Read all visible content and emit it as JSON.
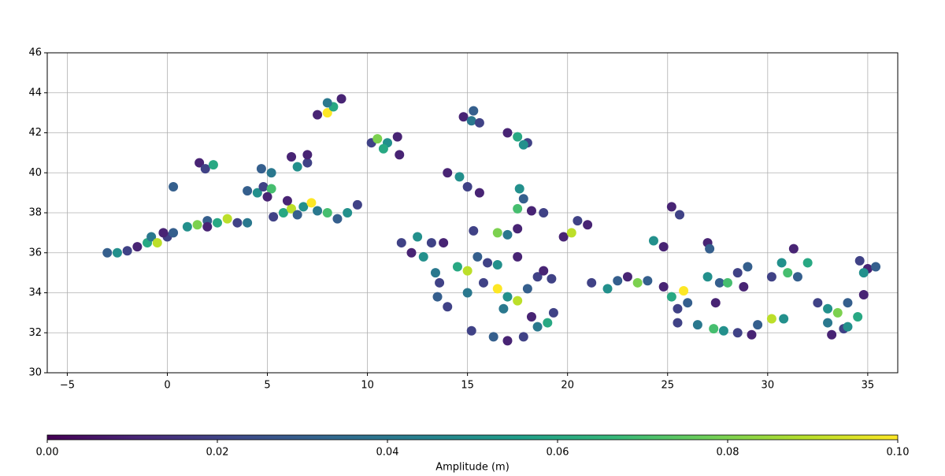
{
  "chart_data": {
    "type": "scatter",
    "x": [
      -3,
      -2.5,
      -2,
      -1.5,
      -1,
      -0.8,
      -0.5,
      0,
      0.3,
      -0.2,
      1,
      1.5,
      2,
      2.5,
      3,
      3.5,
      4,
      2,
      0.3,
      1.6,
      1.9,
      2.3,
      4,
      4.5,
      4.8,
      5.2,
      4.7,
      5.2,
      5,
      5.3,
      5.8,
      6.2,
      6.5,
      6.8,
      7.2,
      7.5,
      8,
      8.5,
      9,
      9.5,
      6,
      6.2,
      6.5,
      7,
      7,
      7.5,
      8,
      8.3,
      8.7,
      8,
      10.2,
      10.5,
      11,
      11.5,
      11.6,
      10.8,
      14.8,
      15.2,
      15.6,
      15.3,
      17,
      17.5,
      18,
      17.8,
      14,
      14.6,
      15,
      15.6,
      17.6,
      17.8,
      17.5,
      18.2,
      18.8,
      15.3,
      16.5,
      17,
      17.5,
      19.8,
      20.2,
      20.5,
      21,
      11.7,
      12.2,
      12.8,
      13.2,
      13.8,
      13.4,
      13.6,
      13.5,
      14,
      12.5,
      14.5,
      15,
      15.5,
      16,
      16.5,
      17.5,
      15,
      15.8,
      16.5,
      17,
      17.5,
      18,
      18.5,
      18.8,
      19.2,
      16.8,
      15.2,
      16.3,
      17,
      17.8,
      18.5,
      19,
      18.2,
      19.3,
      21.2,
      22,
      22.5,
      23,
      23.5,
      24,
      24.3,
      24.8,
      25.2,
      25.6,
      24.8,
      25.2,
      25.8,
      26,
      25.5,
      25.5,
      26.5,
      27.3,
      27.8,
      28.5,
      29.2,
      29.5,
      30.2,
      30.8,
      27,
      27.1,
      27,
      27.6,
      27.4,
      28,
      28.5,
      29,
      28.8,
      30.2,
      30.7,
      31,
      31.3,
      31.5,
      32,
      32.5,
      33,
      33.5,
      34,
      34.5,
      33,
      33.2,
      33.8,
      34.8,
      34,
      34.6,
      35,
      35.4,
      34.8
    ],
    "y": [
      36,
      36,
      36.1,
      36.3,
      36.5,
      36.8,
      36.5,
      36.8,
      37,
      37,
      37.3,
      37.4,
      37.6,
      37.5,
      37.7,
      37.5,
      37.5,
      37.3,
      39.3,
      40.5,
      40.2,
      40.4,
      39.1,
      39,
      39.3,
      39.2,
      40.2,
      40,
      38.8,
      37.8,
      38,
      38.2,
      37.9,
      38.3,
      38.5,
      38.1,
      38,
      37.7,
      38,
      38.4,
      38.6,
      40.8,
      40.3,
      40.5,
      40.9,
      42.9,
      43,
      43.3,
      43.7,
      43.5,
      41.5,
      41.7,
      41.5,
      41.8,
      40.9,
      41.2,
      42.8,
      42.6,
      42.5,
      43.1,
      42,
      41.8,
      41.5,
      41.4,
      40,
      39.8,
      39.3,
      39,
      39.2,
      38.7,
      38.2,
      38.1,
      38,
      37.1,
      37,
      36.9,
      37.2,
      36.8,
      37,
      37.6,
      37.4,
      36.5,
      36,
      35.8,
      36.5,
      36.5,
      35,
      34.5,
      33.8,
      33.3,
      36.8,
      35.3,
      35.1,
      35.8,
      35.5,
      35.4,
      35.8,
      34,
      34.5,
      34.2,
      33.8,
      33.6,
      34.2,
      34.8,
      35.1,
      34.7,
      33.2,
      32.1,
      31.8,
      31.6,
      31.8,
      32.3,
      32.5,
      32.8,
      33,
      34.5,
      34.2,
      34.6,
      34.8,
      34.5,
      34.6,
      36.6,
      36.3,
      38.3,
      37.9,
      34.3,
      33.8,
      34.1,
      33.5,
      33.2,
      32.5,
      32.4,
      32.2,
      32.1,
      32,
      31.9,
      32.4,
      32.7,
      32.7,
      36.5,
      36.2,
      34.8,
      34.5,
      33.5,
      34.5,
      35,
      35.3,
      34.3,
      34.8,
      35.5,
      35,
      36.2,
      34.8,
      35.5,
      33.5,
      33.2,
      33,
      33.5,
      32.8,
      32.5,
      31.9,
      32.2,
      33.9,
      32.3,
      35.6,
      35.2,
      35.3,
      35
    ],
    "c": [
      0.03,
      0.05,
      0.02,
      0.01,
      0.06,
      0.04,
      0.09,
      0.02,
      0.03,
      0.01,
      0.05,
      0.08,
      0.03,
      0.06,
      0.09,
      0.02,
      0.04,
      0.01,
      0.03,
      0.01,
      0.02,
      0.06,
      0.03,
      0.05,
      0.02,
      0.07,
      0.03,
      0.04,
      0.01,
      0.02,
      0.06,
      0.09,
      0.03,
      0.05,
      0.1,
      0.04,
      0.07,
      0.03,
      0.05,
      0.02,
      0.01,
      0.01,
      0.05,
      0.02,
      0.01,
      0.01,
      0.1,
      0.06,
      0.01,
      0.04,
      0.02,
      0.08,
      0.05,
      0.01,
      0.01,
      0.06,
      0.01,
      0.04,
      0.02,
      0.03,
      0.01,
      0.06,
      0.02,
      0.05,
      0.01,
      0.05,
      0.02,
      0.01,
      0.05,
      0.03,
      0.07,
      0.01,
      0.02,
      0.02,
      0.08,
      0.04,
      0.01,
      0.01,
      0.09,
      0.02,
      0.01,
      0.02,
      0.01,
      0.05,
      0.02,
      0.01,
      0.04,
      0.02,
      0.03,
      0.02,
      0.05,
      0.06,
      0.09,
      0.03,
      0.02,
      0.05,
      0.01,
      0.04,
      0.02,
      0.1,
      0.05,
      0.09,
      0.03,
      0.02,
      0.01,
      0.02,
      0.04,
      0.02,
      0.03,
      0.01,
      0.02,
      0.04,
      0.06,
      0.01,
      0.02,
      0.02,
      0.05,
      0.03,
      0.01,
      0.08,
      0.03,
      0.05,
      0.01,
      0.01,
      0.02,
      0.01,
      0.06,
      0.1,
      0.03,
      0.02,
      0.02,
      0.04,
      0.07,
      0.05,
      0.02,
      0.01,
      0.03,
      0.09,
      0.05,
      0.01,
      0.03,
      0.05,
      0.03,
      0.01,
      0.07,
      0.02,
      0.03,
      0.01,
      0.02,
      0.05,
      0.07,
      0.01,
      0.03,
      0.06,
      0.02,
      0.05,
      0.08,
      0.03,
      0.06,
      0.04,
      0.01,
      0.02,
      0.01,
      0.05,
      0.02,
      0.01,
      0.03,
      0.05
    ],
    "xlim": [
      -6,
      36.5
    ],
    "ylim": [
      30,
      46
    ],
    "xticks": [
      {
        "value": -5,
        "label": "−5"
      },
      0,
      5,
      10,
      15,
      20,
      25,
      30,
      35
    ],
    "yticks": [
      30,
      32,
      34,
      36,
      38,
      40,
      42,
      44,
      46
    ],
    "grid": true,
    "colormap": "viridis",
    "colorbar": {
      "label": "Amplitude (m)",
      "lim": [
        0,
        0.1
      ],
      "ticks": [
        {
          "value": 0,
          "label": "0.00"
        },
        {
          "value": 0.02,
          "label": "0.02"
        },
        {
          "value": 0.04,
          "label": "0.04"
        },
        {
          "value": 0.06,
          "label": "0.06"
        },
        {
          "value": 0.08,
          "label": "0.08"
        },
        {
          "value": 0.1,
          "label": "0.10"
        }
      ]
    }
  }
}
